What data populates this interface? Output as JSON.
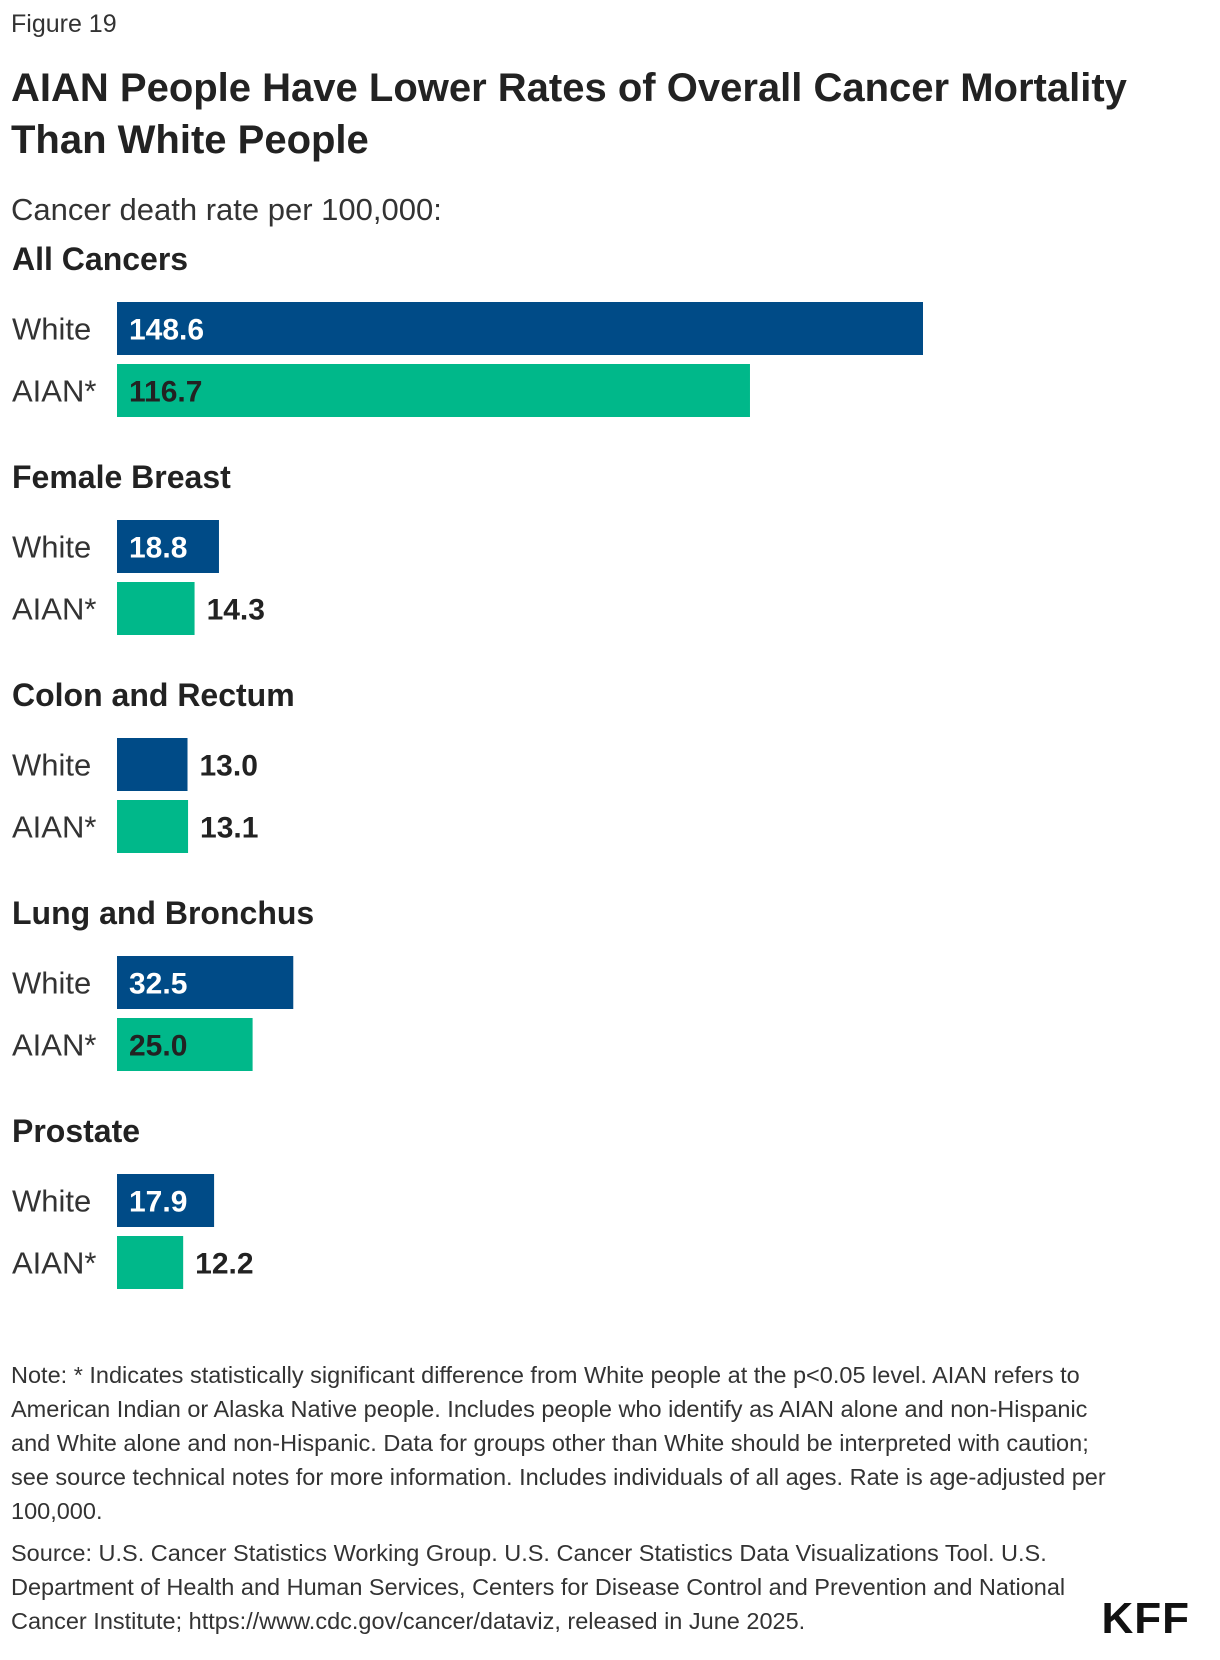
{
  "figure_label": "Figure 19",
  "title": " AIAN People Have Lower Rates of Overall Cancer Mortality Than White People",
  "subtitle": "Cancer death rate per 100,000:",
  "colors": {
    "white": "#004B87",
    "aian": "#00B88A",
    "label_dark": "#222222",
    "label_on_blue": "#ffffff"
  },
  "chart_data": {
    "type": "bar",
    "orientation": "horizontal",
    "groups": [
      {
        "name": "All Cancers",
        "bars": [
          {
            "label": "White",
            "value": 148.6,
            "display": "148.6"
          },
          {
            "label": "AIAN*",
            "value": 116.7,
            "display": "116.7"
          }
        ]
      },
      {
        "name": "Female Breast",
        "bars": [
          {
            "label": "White",
            "value": 18.8,
            "display": "18.8"
          },
          {
            "label": "AIAN*",
            "value": 14.3,
            "display": "14.3"
          }
        ]
      },
      {
        "name": "Colon and Rectum",
        "bars": [
          {
            "label": "White",
            "value": 13.0,
            "display": "13.0"
          },
          {
            "label": "AIAN*",
            "value": 13.1,
            "display": "13.1"
          }
        ]
      },
      {
        "name": "Lung and Bronchus",
        "bars": [
          {
            "label": "White",
            "value": 32.5,
            "display": "32.5"
          },
          {
            "label": "AIAN*",
            "value": 25.0,
            "display": "25.0"
          }
        ]
      },
      {
        "name": "Prostate",
        "bars": [
          {
            "label": "White",
            "value": 17.9,
            "display": "17.9"
          },
          {
            "label": "AIAN*",
            "value": 12.2,
            "display": "12.2"
          }
        ]
      }
    ]
  },
  "note": "Note: * Indicates statistically significant difference from White people at the p<0.05 level. AIAN refers to American Indian or Alaska Native people. Includes people who identify as AIAN alone and non-Hispanic and White alone and non-Hispanic. Data for groups other than White should be interpreted with caution; see source technical notes for more information. Includes individuals of all ages. Rate is age-adjusted per 100,000.",
  "source": "Source: U.S. Cancer Statistics Working Group. U.S. Cancer Statistics Data Visualizations Tool. U.S. Department of Health and Human Services, Centers for Disease Control and Prevention and National Cancer Institute; https://www.cdc.gov/cancer/dataviz, released in June 2025.",
  "logo": "KFF"
}
